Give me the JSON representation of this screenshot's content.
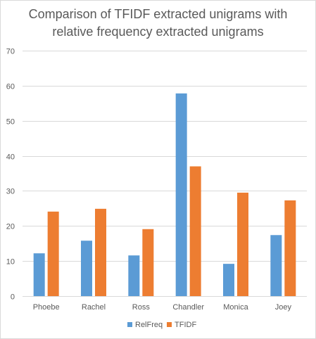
{
  "chart_data": {
    "type": "bar",
    "title_lines": [
      "Comparison of TFIDF extracted unigrams with",
      "relative frequency extracted unigrams"
    ],
    "categories": [
      "Phoebe",
      "Rachel",
      "Ross",
      "Chandler",
      "Monica",
      "Joey"
    ],
    "series": [
      {
        "name": "RelFreq",
        "color": "#5b9bd5",
        "values": [
          12.2,
          15.8,
          11.6,
          57.8,
          9.2,
          17.4
        ]
      },
      {
        "name": "TFIDF",
        "color": "#ed7d31",
        "values": [
          24.1,
          24.9,
          19.1,
          37.0,
          29.5,
          27.3
        ]
      }
    ],
    "ylim": [
      0,
      70
    ],
    "yticks": [
      0,
      10,
      20,
      30,
      40,
      50,
      60,
      70
    ],
    "grid": true,
    "legend": "bottom",
    "gridline_color": "#d9d9d9",
    "text_color": "#595959"
  }
}
